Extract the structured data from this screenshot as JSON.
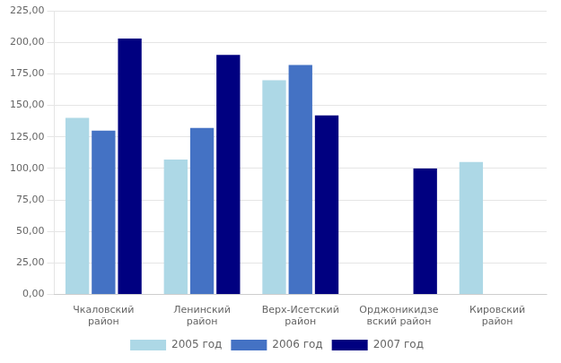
{
  "chart_data": {
    "type": "bar",
    "categories": [
      "Чкаловский\nрайон",
      "Ленинский\nрайон",
      "Верх-Исетский\nрайон",
      "Орджоникидзе\nвский район",
      "Кировский\nрайон"
    ],
    "series": [
      {
        "name": "2005 год",
        "color": "#ADD8E6",
        "values": [
          140,
          107,
          170,
          0,
          105
        ]
      },
      {
        "name": "2006 год",
        "color": "#4472C4",
        "values": [
          130,
          132,
          182,
          0,
          0
        ]
      },
      {
        "name": "2007 год",
        "color": "#000080",
        "values": [
          203,
          190,
          142,
          100,
          0
        ]
      }
    ],
    "ylim": [
      0,
      225
    ],
    "yticks": [
      {
        "value": 0,
        "label": "0,00"
      },
      {
        "value": 25,
        "label": "25,00"
      },
      {
        "value": 50,
        "label": "50,00"
      },
      {
        "value": 75,
        "label": "75,00"
      },
      {
        "value": 100,
        "label": "100,00"
      },
      {
        "value": 125,
        "label": "125,00"
      },
      {
        "value": 150,
        "label": "150,00"
      },
      {
        "value": 175,
        "label": "175,00"
      },
      {
        "value": 200,
        "label": "200,00"
      },
      {
        "value": 225,
        "label": "225,00"
      }
    ],
    "grid": true,
    "legend": "bottom"
  }
}
